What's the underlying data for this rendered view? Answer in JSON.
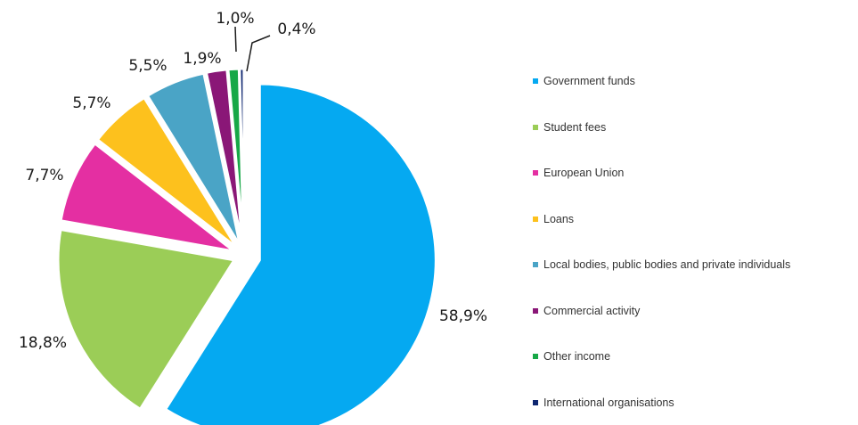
{
  "chart_data": {
    "type": "pie",
    "slices": [
      {
        "label": "Government funds",
        "value": 58.9,
        "text": "58,9%",
        "color": "#05a9f1"
      },
      {
        "label": "Student fees",
        "value": 18.8,
        "text": "18,8%",
        "color": "#9bcd57"
      },
      {
        "label": "European Union",
        "value": 7.7,
        "text": "7,7%",
        "color": "#e42fa2"
      },
      {
        "label": "Loans",
        "value": 5.7,
        "text": "5,7%",
        "color": "#fdc11d"
      },
      {
        "label": "Local bodies, public bodies and private individuals",
        "value": 5.5,
        "text": "5,5%",
        "color": "#4aa4c6"
      },
      {
        "label": "Commercial activity",
        "value": 1.9,
        "text": "1,9%",
        "color": "#8a1777"
      },
      {
        "label": "Other income",
        "value": 1.0,
        "text": "1,0%",
        "color": "#17a847"
      },
      {
        "label": "International organisations",
        "value": 0.4,
        "text": "0,4%",
        "color": "#0e2670"
      }
    ],
    "legend_position": "right",
    "exploded_slice": "Government funds"
  }
}
